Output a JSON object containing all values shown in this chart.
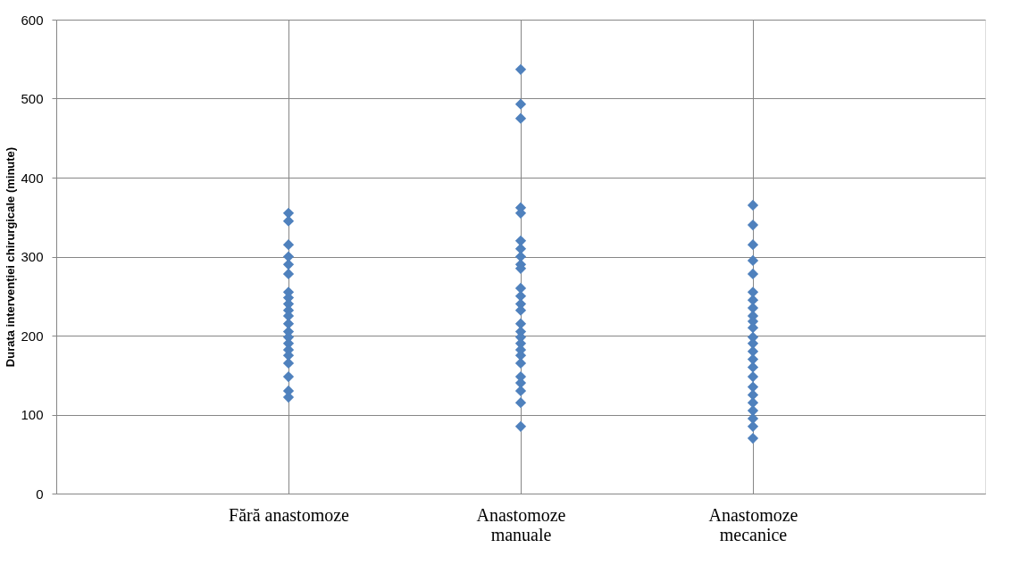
{
  "chart_data": {
    "type": "scatter",
    "ylabel": "Durata intervenției chirurgicale  (minute)",
    "categories": [
      "Fără anastomoze",
      "Anastomoze manuale",
      "Anastomoze mecanice"
    ],
    "series": [
      {
        "color": "#4f81bd",
        "x": [
          "Fără anastomoze",
          "Fără anastomoze",
          "Fără anastomoze",
          "Fără anastomoze",
          "Fără anastomoze",
          "Fără anastomoze",
          "Fără anastomoze",
          "Fără anastomoze",
          "Fără anastomoze",
          "Fără anastomoze",
          "Fără anastomoze",
          "Fără anastomoze",
          "Fără anastomoze",
          "Fără anastomoze",
          "Fără anastomoze",
          "Fără anastomoze",
          "Fără anastomoze",
          "Fără anastomoze",
          "Fără anastomoze",
          "Fără anastomoze",
          "Fără anastomoze",
          "Anastomoze manuale",
          "Anastomoze manuale",
          "Anastomoze manuale",
          "Anastomoze manuale",
          "Anastomoze manuale",
          "Anastomoze manuale",
          "Anastomoze manuale",
          "Anastomoze manuale",
          "Anastomoze manuale",
          "Anastomoze manuale",
          "Anastomoze manuale",
          "Anastomoze manuale",
          "Anastomoze manuale",
          "Anastomoze manuale",
          "Anastomoze manuale",
          "Anastomoze manuale",
          "Anastomoze manuale",
          "Anastomoze manuale",
          "Anastomoze manuale",
          "Anastomoze manuale",
          "Anastomoze manuale",
          "Anastomoze manuale",
          "Anastomoze manuale",
          "Anastomoze manuale",
          "Anastomoze manuale",
          "Anastomoze manuale",
          "Anastomoze mecanice",
          "Anastomoze mecanice",
          "Anastomoze mecanice",
          "Anastomoze mecanice",
          "Anastomoze mecanice",
          "Anastomoze mecanice",
          "Anastomoze mecanice",
          "Anastomoze mecanice",
          "Anastomoze mecanice",
          "Anastomoze mecanice",
          "Anastomoze mecanice",
          "Anastomoze mecanice",
          "Anastomoze mecanice",
          "Anastomoze mecanice",
          "Anastomoze mecanice",
          "Anastomoze mecanice",
          "Anastomoze mecanice",
          "Anastomoze mecanice",
          "Anastomoze mecanice",
          "Anastomoze mecanice",
          "Anastomoze mecanice",
          "Anastomoze mecanice",
          "Anastomoze mecanice",
          "Anastomoze mecanice"
        ],
        "values": [
          355,
          345,
          315,
          300,
          290,
          278,
          255,
          248,
          240,
          232,
          225,
          215,
          205,
          198,
          190,
          182,
          175,
          165,
          148,
          130,
          122,
          537,
          493,
          475,
          362,
          355,
          320,
          310,
          300,
          290,
          285,
          260,
          250,
          240,
          232,
          215,
          205,
          198,
          190,
          182,
          175,
          165,
          148,
          140,
          130,
          115,
          85,
          365,
          340,
          315,
          295,
          278,
          255,
          245,
          235,
          225,
          218,
          210,
          198,
          190,
          180,
          170,
          160,
          148,
          135,
          125,
          115,
          105,
          95,
          85,
          70
        ]
      }
    ],
    "ylim": [
      0,
      600
    ],
    "yticks": [
      0,
      100,
      200,
      300,
      400,
      500,
      600
    ],
    "grid": true,
    "marker": "diamond",
    "legend": false
  }
}
